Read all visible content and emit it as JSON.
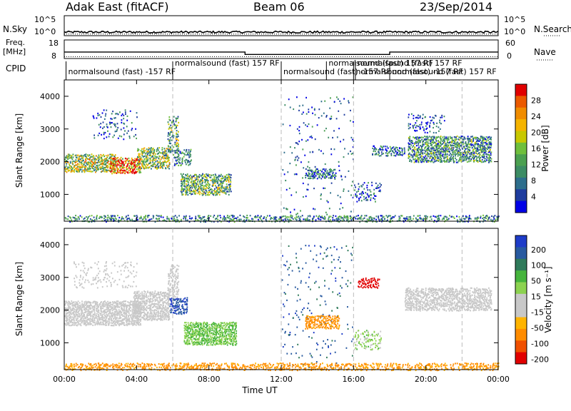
{
  "header": {
    "station": "Adak East (fitACF)",
    "beam": "Beam 06",
    "date": "23/Sep/2014"
  },
  "left_labels": {
    "nsky": "N.Sky",
    "freq": "Freq.",
    "freq_unit": "[MHz]",
    "cpid": "CPID"
  },
  "right_labels": {
    "nsearch": "N.Search",
    "nave": "Nave"
  },
  "colors": {
    "power_scale": [
      "#0000e6",
      "#1e3c9e",
      "#2d6e8c",
      "#3c8c64",
      "#4ba050",
      "#6fbf3c",
      "#c8c800",
      "#f5b400",
      "#f08c00",
      "#eb5a00",
      "#e10000"
    ],
    "velocity_scale": [
      "#1e3cc8",
      "#285aa0",
      "#2f7a5a",
      "#46b43c",
      "#8cd250",
      "#c8c8c8",
      "#c8c8c8",
      "#ffb400",
      "#ff8c00",
      "#f05000",
      "#e10000"
    ]
  },
  "chart_data": [
    {
      "type": "line",
      "name": "noise-panel",
      "x_range_hours": [
        0,
        24
      ],
      "ytick_left": [
        "10^5",
        "10^0"
      ],
      "ytick_right": [
        "10^5",
        "10^0"
      ],
      "ylim_log10": [
        0,
        5
      ],
      "nsky_level_log10": 0.9,
      "nsearch_level_log10": 0.4
    },
    {
      "type": "line",
      "name": "frequency-panel",
      "yticks_left": [
        "18",
        "8"
      ],
      "yticks_right": [
        "60",
        "0"
      ],
      "ylim": [
        8,
        18
      ],
      "freq_steps": [
        {
          "x0": 0,
          "x1": 10,
          "y": 11.5
        },
        {
          "x0": 10,
          "x1": 18,
          "y": 10.2
        },
        {
          "x0": 18,
          "x1": 24,
          "y": 11.5
        }
      ],
      "nave_level": 9
    },
    {
      "type": "table",
      "name": "cpid-segments",
      "segments": [
        {
          "x": 0.1,
          "label": "normalsound (fast) -157 RF"
        },
        {
          "x": 6.0,
          "label": "normalsound (fast) 157 RF"
        },
        {
          "x": 12.0,
          "label": "normalsound (fast) -157 RF"
        },
        {
          "x": 14.5,
          "label": "normalsound (fast) 157 RF"
        },
        {
          "x": 16.0,
          "label": "normalsound (fast) -157 RF"
        },
        {
          "x": 16.1,
          "label": "normalsound (fast) 157 RF"
        },
        {
          "x": 18.0,
          "label": "normalsound (fast) 157 RF"
        }
      ]
    },
    {
      "type": "heatmap",
      "name": "power",
      "title": "Power [dB]",
      "ylabel": "Slant Range [km]",
      "ylim": [
        180,
        4500
      ],
      "yticks": [
        1000,
        2000,
        3000,
        4000
      ],
      "xlim": [
        0,
        24
      ],
      "cbar_ticks": [
        "28",
        "24",
        "20",
        "16",
        "12",
        "8",
        "4"
      ],
      "cbar_range": [
        0,
        30
      ],
      "dashed_lines": [
        6,
        12,
        16,
        22
      ],
      "scatter_regions": [
        {
          "t0": 0.0,
          "t1": 2.8,
          "r0": 1700,
          "r1": 2250,
          "value": 16,
          "density": 0.85
        },
        {
          "t0": 2.5,
          "t1": 4.2,
          "r0": 1650,
          "r1": 2150,
          "value": 25,
          "density": 0.85
        },
        {
          "t0": 4.0,
          "t1": 5.8,
          "r0": 1800,
          "r1": 2450,
          "value": 14,
          "density": 0.75
        },
        {
          "t0": 5.7,
          "t1": 6.3,
          "r0": 2300,
          "r1": 3400,
          "value": 12,
          "density": 0.6
        },
        {
          "t0": 6.4,
          "t1": 9.2,
          "r0": 1000,
          "r1": 1650,
          "value": 12,
          "density": 0.75
        },
        {
          "t0": 6.0,
          "t1": 7.0,
          "r0": 1900,
          "r1": 2400,
          "value": 8,
          "density": 0.5
        },
        {
          "t0": 1.5,
          "t1": 4.0,
          "r0": 2700,
          "r1": 3600,
          "value": 5,
          "density": 0.15
        },
        {
          "t0": 12.0,
          "t1": 16.0,
          "r0": 200,
          "r1": 4000,
          "value": 5,
          "density": 0.04
        },
        {
          "t0": 13.3,
          "t1": 15.0,
          "r0": 1500,
          "r1": 1800,
          "value": 6,
          "density": 0.7
        },
        {
          "t0": 16.0,
          "t1": 17.5,
          "r0": 800,
          "r1": 1400,
          "value": 5,
          "density": 0.35
        },
        {
          "t0": 17.0,
          "t1": 18.8,
          "r0": 2200,
          "r1": 2500,
          "value": 6,
          "density": 0.6
        },
        {
          "t0": 19.0,
          "t1": 23.6,
          "r0": 2000,
          "r1": 2800,
          "value": 9,
          "density": 0.75
        },
        {
          "t0": 19.0,
          "t1": 21.0,
          "r0": 2900,
          "r1": 3500,
          "value": 4,
          "density": 0.25
        },
        {
          "t0": 0.0,
          "t1": 24.0,
          "r0": 180,
          "r1": 380,
          "value": 8,
          "density": 0.5
        }
      ]
    },
    {
      "type": "heatmap",
      "name": "velocity",
      "title": "Velocity [m s⁻¹]",
      "ylabel": "Slant Range [km]",
      "xlabel": "Time UT",
      "ylim": [
        180,
        4500
      ],
      "yticks": [
        1000,
        2000,
        3000,
        4000
      ],
      "xlim": [
        0,
        24
      ],
      "xticks": [
        "00:00",
        "04:00",
        "08:00",
        "12:00",
        "16:00",
        "20:00",
        "00:00"
      ],
      "cbar_ticks": [
        "200",
        "100",
        "50",
        "15",
        "-15",
        "-50",
        "-100",
        "-200"
      ],
      "dashed_lines": [
        6,
        12,
        16,
        22
      ],
      "scatter_regions": [
        {
          "t0": 0.0,
          "t1": 4.2,
          "r0": 1550,
          "r1": 2300,
          "value": 0,
          "density": 0.9
        },
        {
          "t0": 3.8,
          "t1": 5.8,
          "r0": 1700,
          "r1": 2600,
          "value": 0,
          "density": 0.8
        },
        {
          "t0": 5.7,
          "t1": 6.3,
          "r0": 2300,
          "r1": 3400,
          "value": 0,
          "density": 0.6
        },
        {
          "t0": 5.8,
          "t1": 6.8,
          "r0": 1900,
          "r1": 2400,
          "value": 150,
          "density": 0.7
        },
        {
          "t0": 6.6,
          "t1": 9.5,
          "r0": 950,
          "r1": 1650,
          "value": 30,
          "density": 0.85
        },
        {
          "t0": 0.5,
          "t1": 4.0,
          "r0": 2700,
          "r1": 3500,
          "value": 0,
          "density": 0.15
        },
        {
          "t0": 12.0,
          "t1": 16.0,
          "r0": 200,
          "r1": 4000,
          "value": 120,
          "density": 0.04
        },
        {
          "t0": 13.3,
          "t1": 15.2,
          "r0": 1450,
          "r1": 1850,
          "value": -70,
          "density": 0.75
        },
        {
          "t0": 16.2,
          "t1": 17.4,
          "r0": 2700,
          "r1": 3000,
          "value": -220,
          "density": 0.6
        },
        {
          "t0": 16.0,
          "t1": 17.5,
          "r0": 800,
          "r1": 1400,
          "value": 20,
          "density": 0.3
        },
        {
          "t0": 18.8,
          "t1": 23.6,
          "r0": 2000,
          "r1": 2700,
          "value": 0,
          "density": 0.75
        },
        {
          "t0": 0.0,
          "t1": 24.0,
          "r0": 180,
          "r1": 400,
          "value": -60,
          "density": 0.5
        }
      ]
    }
  ]
}
